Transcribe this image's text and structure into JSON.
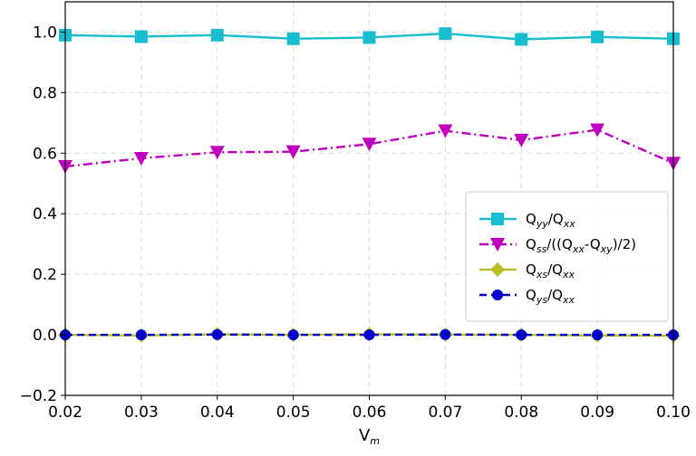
{
  "chart_data": {
    "type": "line",
    "x": [
      0.02,
      0.03,
      0.04,
      0.05,
      0.06,
      0.07,
      0.08,
      0.09,
      0.1
    ],
    "xlim": [
      0.02,
      0.1
    ],
    "ylim": [
      -0.2,
      1.1
    ],
    "xticks": [
      "0.02",
      "0.03",
      "0.04",
      "0.05",
      "0.06",
      "0.07",
      "0.08",
      "0.09",
      "0.10"
    ],
    "yticks": [
      "−0.2",
      "0.0",
      "0.2",
      "0.4",
      "0.6",
      "0.8",
      "1.0"
    ],
    "ytick_values": [
      -0.2,
      0.0,
      0.2,
      0.4,
      0.6,
      0.8,
      1.0
    ],
    "xlabel": {
      "main": "V",
      "sub": "m"
    },
    "ylabel": "",
    "grid": true,
    "legend_position": "center-right",
    "series": [
      {
        "key": "qyy",
        "name": "Qyy/Qxx",
        "label_parts": [
          [
            "Q",
            ""
          ],
          [
            "yy",
            "sub"
          ],
          [
            "/Q",
            ""
          ],
          [
            "xx",
            "sub"
          ]
        ],
        "color": "#17becf",
        "marker": "square",
        "linestyle": "solid",
        "values": [
          0.99,
          0.985,
          0.99,
          0.978,
          0.982,
          0.995,
          0.976,
          0.984,
          0.978
        ]
      },
      {
        "key": "qss",
        "name": "Qss/((Qxx-Qxy)/2)",
        "label_parts": [
          [
            "Q",
            ""
          ],
          [
            "ss",
            "sub"
          ],
          [
            "/((Q",
            ""
          ],
          [
            "xx",
            "sub"
          ],
          [
            "-Q",
            ""
          ],
          [
            "xy",
            "sub"
          ],
          [
            ")/2)",
            ""
          ]
        ],
        "color": "#bf00bf",
        "marker": "triangle-down",
        "linestyle": "dashdot",
        "values": [
          0.556,
          0.583,
          0.603,
          0.605,
          0.63,
          0.674,
          0.643,
          0.677,
          0.567
        ]
      },
      {
        "key": "qxs",
        "name": "Qxs/Qxx",
        "label_parts": [
          [
            "Q",
            ""
          ],
          [
            "xs",
            "sub"
          ],
          [
            "/Q",
            ""
          ],
          [
            "xx",
            "sub"
          ]
        ],
        "color": "#bcbd22",
        "marker": "diamond",
        "linestyle": "solid",
        "values": [
          0.0,
          -0.002,
          0.002,
          0.0,
          0.002,
          0.001,
          0.0,
          -0.002,
          -0.003
        ]
      },
      {
        "key": "qys",
        "name": "Qys/Qxx",
        "label_parts": [
          [
            "Q",
            ""
          ],
          [
            "ys",
            "sub"
          ],
          [
            "/Q",
            ""
          ],
          [
            "xx",
            "sub"
          ]
        ],
        "color": "#0000cc",
        "marker": "circle",
        "linestyle": "dashed",
        "values": [
          0.0,
          0.0,
          0.001,
          0.0,
          0.0,
          0.001,
          0.0,
          0.0,
          0.0
        ]
      }
    ]
  }
}
